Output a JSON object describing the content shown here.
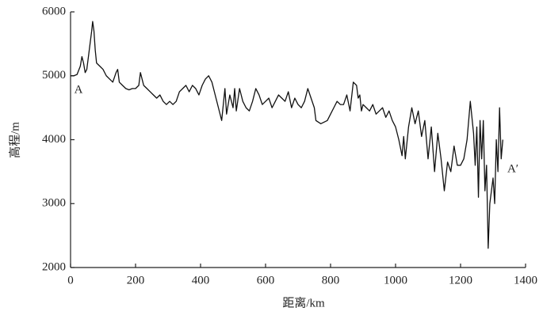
{
  "chart_data": {
    "type": "line",
    "xlabel": "距离/km",
    "ylabel": "高程/m",
    "annotations": [
      "A",
      "A′"
    ],
    "xlim": [
      0,
      1400
    ],
    "xticks": [
      0,
      200,
      400,
      600,
      800,
      1000,
      1200,
      1400
    ],
    "ylim": [
      2000,
      6000
    ],
    "yticks": [
      2000,
      3000,
      4000,
      5000,
      6000
    ],
    "grid": false,
    "series": [
      {
        "color": "#111111",
        "x": [
          0,
          10,
          20,
          30,
          35,
          40,
          45,
          50,
          55,
          60,
          65,
          68,
          72,
          76,
          80,
          90,
          100,
          110,
          120,
          130,
          140,
          145,
          150,
          160,
          170,
          180,
          190,
          200,
          210,
          215,
          220,
          225,
          235,
          245,
          255,
          265,
          275,
          285,
          295,
          305,
          315,
          325,
          335,
          345,
          355,
          365,
          375,
          385,
          395,
          405,
          415,
          425,
          435,
          445,
          455,
          465,
          470,
          475,
          480,
          490,
          500,
          505,
          510,
          520,
          530,
          540,
          550,
          560,
          570,
          580,
          590,
          600,
          610,
          620,
          630,
          640,
          650,
          660,
          670,
          680,
          690,
          700,
          710,
          720,
          730,
          740,
          750,
          755,
          770,
          790,
          800,
          810,
          820,
          830,
          840,
          850,
          860,
          870,
          880,
          885,
          890,
          895,
          900,
          910,
          920,
          930,
          940,
          950,
          960,
          970,
          980,
          990,
          1000,
          1010,
          1020,
          1025,
          1030,
          1040,
          1050,
          1060,
          1070,
          1080,
          1090,
          1100,
          1110,
          1120,
          1130,
          1140,
          1150,
          1160,
          1170,
          1180,
          1190,
          1200,
          1210,
          1220,
          1230,
          1240,
          1245,
          1250,
          1255,
          1260,
          1265,
          1270,
          1275,
          1280,
          1285,
          1290,
          1300,
          1305,
          1310,
          1315,
          1320,
          1325,
          1330
        ],
        "values": [
          5000,
          5000,
          5020,
          5150,
          5300,
          5200,
          5050,
          5100,
          5300,
          5500,
          5700,
          5850,
          5700,
          5400,
          5200,
          5150,
          5100,
          5000,
          4950,
          4900,
          5050,
          5100,
          4900,
          4850,
          4800,
          4780,
          4800,
          4800,
          4850,
          5050,
          4950,
          4850,
          4800,
          4750,
          4700,
          4650,
          4700,
          4600,
          4550,
          4600,
          4550,
          4600,
          4750,
          4800,
          4850,
          4750,
          4850,
          4800,
          4700,
          4850,
          4950,
          5000,
          4900,
          4700,
          4500,
          4300,
          4550,
          4800,
          4400,
          4700,
          4500,
          4800,
          4450,
          4800,
          4600,
          4500,
          4450,
          4600,
          4800,
          4700,
          4550,
          4600,
          4650,
          4500,
          4600,
          4700,
          4650,
          4600,
          4750,
          4500,
          4650,
          4550,
          4500,
          4600,
          4800,
          4650,
          4500,
          4300,
          4250,
          4300,
          4400,
          4500,
          4600,
          4550,
          4550,
          4700,
          4450,
          4900,
          4850,
          4650,
          4700,
          4450,
          4550,
          4500,
          4450,
          4550,
          4400,
          4450,
          4500,
          4350,
          4450,
          4300,
          4200,
          4000,
          3750,
          4050,
          3700,
          4200,
          4500,
          4250,
          4450,
          4050,
          4300,
          3700,
          4200,
          3500,
          4100,
          3700,
          3200,
          3650,
          3500,
          3900,
          3600,
          3600,
          3700,
          4000,
          4600,
          4100,
          3600,
          4200,
          3100,
          4300,
          3700,
          4300,
          3200,
          3600,
          2300,
          3000,
          3400,
          3000,
          4000,
          3500,
          4500,
          3700,
          4000
        ]
      }
    ]
  }
}
